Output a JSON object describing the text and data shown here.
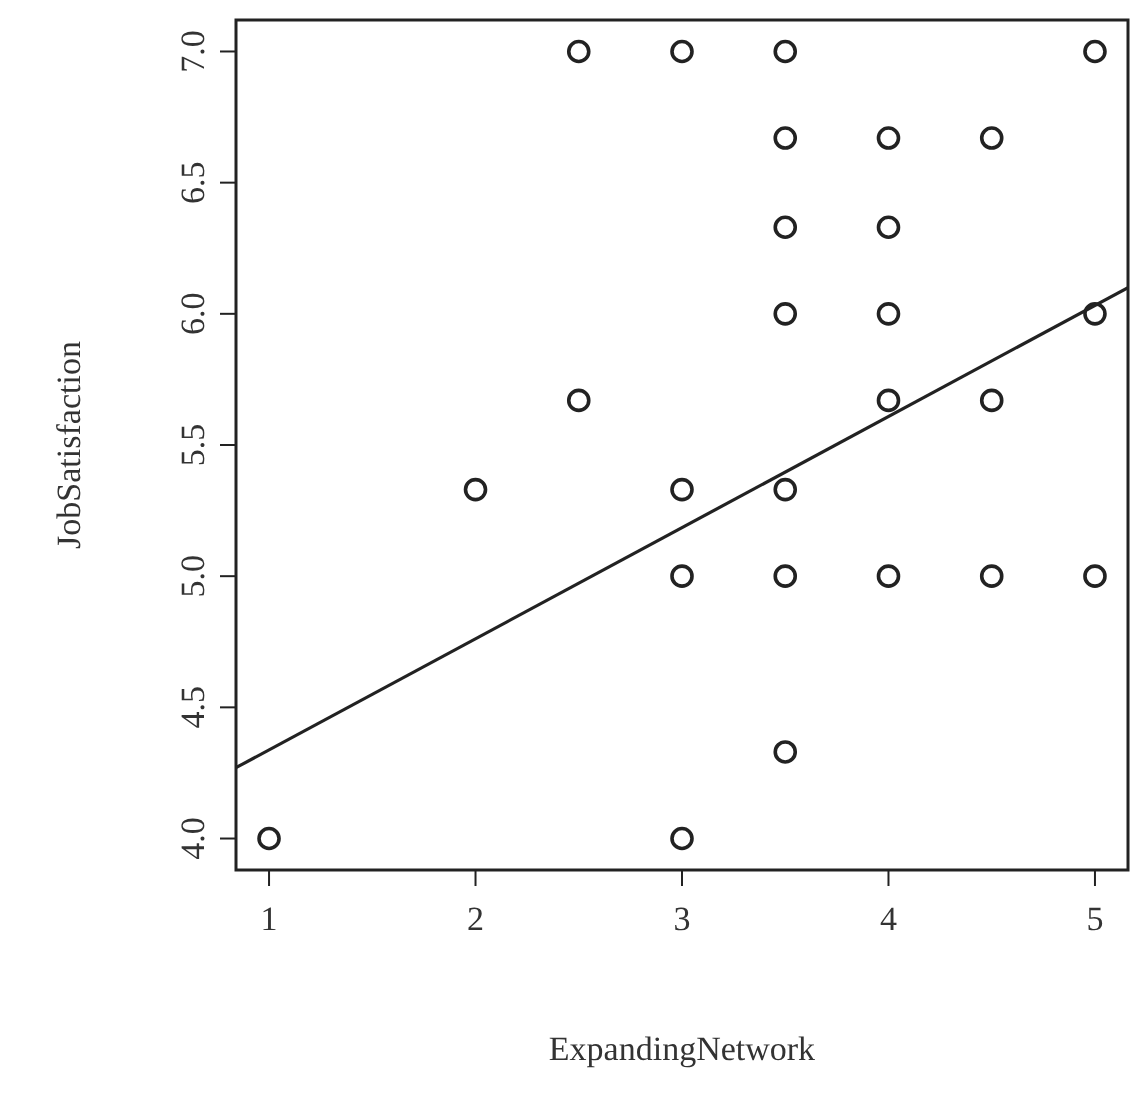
{
  "chart_data": {
    "type": "scatter",
    "xlabel": "ExpandingNetwork",
    "ylabel": "JobSatisfaction",
    "xlim": [
      0.84,
      5.16
    ],
    "ylim": [
      3.88,
      7.12
    ],
    "xticks": [
      1,
      2,
      3,
      4,
      5
    ],
    "yticks": [
      {
        "value": 4,
        "label": "4.0"
      },
      {
        "value": 4.5,
        "label": "4.5"
      },
      {
        "value": 5,
        "label": "5.0"
      },
      {
        "value": 5.5,
        "label": "5.5"
      },
      {
        "value": 6,
        "label": "6.0"
      },
      {
        "value": 6.5,
        "label": "6.5"
      },
      {
        "value": 7,
        "label": "7.0"
      }
    ],
    "grid": false,
    "series": [
      {
        "marker": "circle",
        "color": "#222222",
        "x": [
          1,
          2,
          2.5,
          2.5,
          3,
          3,
          3,
          3,
          3.5,
          3.5,
          3.5,
          3.5,
          3.5,
          3.5,
          3.5,
          4,
          4,
          4,
          4,
          4,
          4.5,
          4.5,
          4.5,
          5,
          5,
          5
        ],
        "values": [
          4,
          5.33,
          7,
          5.67,
          7,
          5.33,
          5,
          4,
          7,
          6.67,
          6.33,
          6,
          5.33,
          5,
          4.33,
          6.67,
          6.33,
          6,
          5.67,
          5,
          6.67,
          5.67,
          5,
          7,
          6,
          5
        ]
      },
      {
        "type": "line",
        "color": "#222222",
        "x": [
          0.84,
          5.16
        ],
        "values": [
          4.27,
          6.1
        ]
      }
    ]
  }
}
